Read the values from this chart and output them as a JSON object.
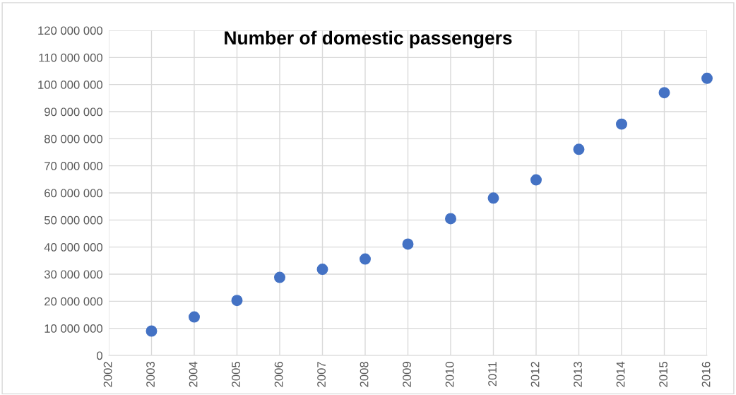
{
  "chart_data": {
    "type": "scatter",
    "title": "Number of domestic passengers",
    "x": [
      2003,
      2004,
      2005,
      2006,
      2007,
      2008,
      2009,
      2010,
      2011,
      2012,
      2013,
      2014,
      2015,
      2016
    ],
    "series": [
      {
        "color": "#4472c4",
        "values": [
          9000000,
          14200000,
          20300000,
          28800000,
          31800000,
          35600000,
          41100000,
          50500000,
          58100000,
          64800000,
          76100000,
          85400000,
          97000000,
          102300000
        ]
      }
    ],
    "xlim": [
      2002,
      2016
    ],
    "xticks": [
      2002,
      2003,
      2004,
      2005,
      2006,
      2007,
      2008,
      2009,
      2010,
      2011,
      2012,
      2013,
      2014,
      2015,
      2016
    ],
    "ylim": [
      0,
      120000000
    ],
    "yticks": [
      0,
      {
        "value": 10000000,
        "label": "10 000 000"
      },
      {
        "value": 20000000,
        "label": "20 000 000"
      },
      {
        "value": 30000000,
        "label": "30 000 000"
      },
      {
        "value": 40000000,
        "label": "40 000 000"
      },
      {
        "value": 50000000,
        "label": "50 000 000"
      },
      {
        "value": 60000000,
        "label": "60 000 000"
      },
      {
        "value": 70000000,
        "label": "70 000 000"
      },
      {
        "value": 80000000,
        "label": "80 000 000"
      },
      {
        "value": 90000000,
        "label": "90 000 000"
      },
      {
        "value": 100000000,
        "label": "100 000 000"
      },
      {
        "value": 110000000,
        "label": "110 000 000"
      },
      {
        "value": 120000000,
        "label": "120 000 000"
      }
    ],
    "grid": true,
    "marker": "circle",
    "legend": false
  }
}
